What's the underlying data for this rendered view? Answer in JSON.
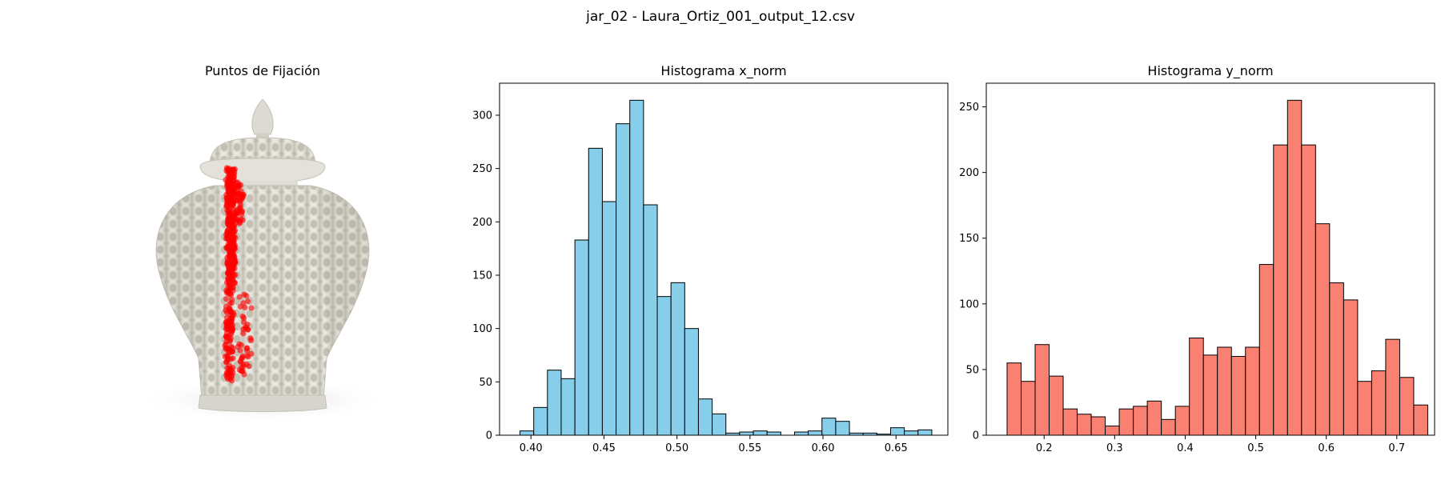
{
  "figure": {
    "suptitle": "jar_02 - Laura_Ortiz_001_output_12.csv"
  },
  "colors": {
    "x_hist_fill": "#87ceeb",
    "y_hist_fill": "#fa8072",
    "edge": "#000000",
    "fixation": "#ff0000"
  },
  "chart_data": [
    {
      "type": "scatter",
      "title": "Puntos de Fijación",
      "background": "jar-image",
      "axis": "off",
      "points_color": "#ff0000",
      "points_alpha": 0.6,
      "clusters": [
        {
          "x": [
            0.455,
            0.495
          ],
          "y": [
            0.24,
            0.58
          ],
          "density": "high"
        },
        {
          "x": [
            0.45,
            0.49
          ],
          "y": [
            0.58,
            0.85
          ],
          "density": "medium"
        },
        {
          "x": [
            0.5,
            0.56
          ],
          "y": [
            0.6,
            0.83
          ],
          "density": "low"
        },
        {
          "x": [
            0.49,
            0.53
          ],
          "y": [
            0.28,
            0.4
          ],
          "density": "low"
        }
      ]
    },
    {
      "type": "bar",
      "title": "Histograma x_norm",
      "bin_start": 0.3925,
      "bin_width": 0.0094,
      "values": [
        4,
        26,
        61,
        53,
        183,
        269,
        219,
        292,
        314,
        216,
        130,
        143,
        100,
        34,
        20,
        2,
        3,
        4,
        3,
        0,
        3,
        4,
        16,
        13,
        2,
        2,
        1,
        7,
        4,
        5
      ],
      "xlim": [
        0.3785,
        0.6855
      ],
      "ylim": [
        0,
        330
      ],
      "xticks": [
        0.4,
        0.45,
        0.5,
        0.55,
        0.6,
        0.65
      ],
      "xtick_labels": [
        "0.40",
        "0.45",
        "0.50",
        "0.55",
        "0.60",
        "0.65"
      ],
      "yticks": [
        0,
        50,
        100,
        150,
        200,
        250,
        300
      ],
      "ytick_labels": [
        "0",
        "50",
        "100",
        "150",
        "200",
        "250",
        "300"
      ],
      "grid": false,
      "fill": "#87ceeb"
    },
    {
      "type": "bar",
      "title": "Histograma y_norm",
      "bin_start": 0.1475,
      "bin_width": 0.01988,
      "values": [
        55,
        41,
        69,
        45,
        20,
        16,
        14,
        7,
        20,
        22,
        26,
        12,
        22,
        74,
        61,
        67,
        60,
        67,
        130,
        221,
        255,
        221,
        161,
        116,
        103,
        41,
        49,
        73,
        44,
        23
      ],
      "xlim": [
        0.118,
        0.7536
      ],
      "ylim": [
        0,
        268
      ],
      "xticks": [
        0.2,
        0.3,
        0.4,
        0.5,
        0.6,
        0.7
      ],
      "xtick_labels": [
        "0.2",
        "0.3",
        "0.4",
        "0.5",
        "0.6",
        "0.7"
      ],
      "yticks": [
        0,
        50,
        100,
        150,
        200,
        250
      ],
      "ytick_labels": [
        "0",
        "50",
        "100",
        "150",
        "200",
        "250"
      ],
      "grid": false,
      "fill": "#fa8072"
    }
  ]
}
